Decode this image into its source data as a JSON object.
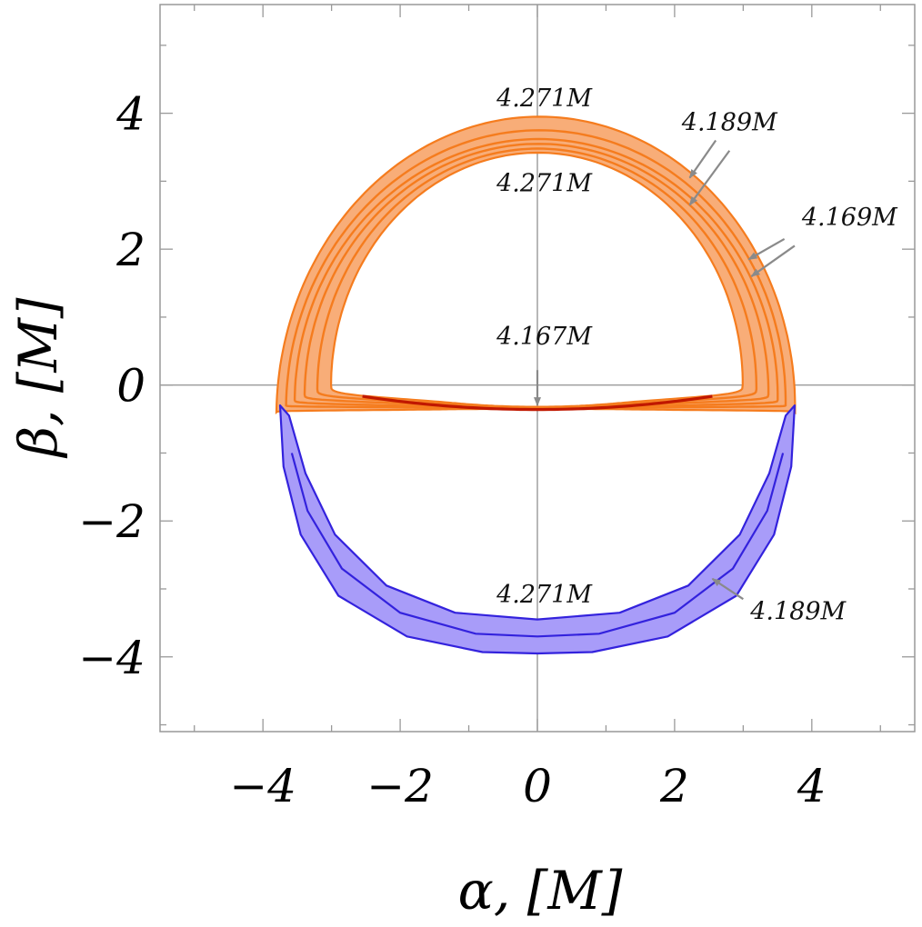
{
  "chart_data": {
    "type": "area",
    "title": "",
    "xlabel": "α, [M]",
    "ylabel": "β, [M]",
    "xlim": [
      -5.5,
      5.5
    ],
    "ylim": [
      -5.1,
      5.6
    ],
    "xticks": [
      -4,
      -2,
      0,
      2,
      4
    ],
    "yticks": [
      -4,
      -2,
      0,
      2,
      4
    ],
    "x_tick_labels": [
      "−4",
      "−2",
      "0",
      "2",
      "4"
    ],
    "y_tick_labels": [
      "−4",
      "−2",
      "0",
      "2",
      "4"
    ],
    "grid": false,
    "crosshair_at": [
      0,
      0
    ],
    "colors": {
      "orange_fill": "#f8ad78",
      "orange_stroke": "#f57c1e",
      "blue_fill": "#a89cf9",
      "blue_stroke": "#3322dd",
      "inner_arc": "#c01800",
      "annotation": "#8a8a8a"
    },
    "series": [
      {
        "band": "upper",
        "outer": {
          "a": 3.78,
          "b": 3.95,
          "yb": -0.35,
          "ybo": -0.4,
          "lower_k": 6.0,
          "shift": 0.05
        },
        "inner": {
          "a": 3.0,
          "b": 3.42,
          "yb": -0.32,
          "ybo": 0.0,
          "lower_k": 5.0,
          "shift": 0.02
        },
        "contours": [
          {
            "a": 3.64,
            "b": 3.75,
            "yb": -0.34,
            "ybo": -0.3,
            "lower_k": 5.8,
            "shift": 0.05
          },
          {
            "a": 3.52,
            "b": 3.62,
            "yb": -0.34,
            "ybo": -0.22,
            "lower_k": 5.6,
            "shift": 0.04
          },
          {
            "a": 3.38,
            "b": 3.55,
            "yb": -0.33,
            "ybo": -0.14,
            "lower_k": 5.4,
            "shift": 0.03
          },
          {
            "a": 3.2,
            "b": 3.48,
            "yb": -0.33,
            "ybo": -0.06,
            "lower_k": 5.2,
            "shift": 0.02
          }
        ],
        "inner_arc": {
          "x_start": -2.55,
          "x_end": 2.55,
          "y_center": -0.36,
          "curv": 0.03
        }
      },
      {
        "band": "lower",
        "outer": [
          [
            -3.75,
            -0.3
          ],
          [
            -3.7,
            -1.2
          ],
          [
            -3.45,
            -2.2
          ],
          [
            -2.9,
            -3.1
          ],
          [
            -1.9,
            -3.7
          ],
          [
            -0.8,
            -3.93
          ],
          [
            0.0,
            -3.95
          ],
          [
            0.8,
            -3.93
          ],
          [
            1.9,
            -3.7
          ],
          [
            2.9,
            -3.1
          ],
          [
            3.45,
            -2.2
          ],
          [
            3.7,
            -1.2
          ],
          [
            3.75,
            -0.3
          ],
          [
            3.62,
            -0.45
          ],
          [
            3.38,
            -1.3
          ],
          [
            2.95,
            -2.2
          ],
          [
            2.2,
            -2.95
          ],
          [
            1.2,
            -3.35
          ],
          [
            0.0,
            -3.45
          ],
          [
            -1.2,
            -3.35
          ],
          [
            -2.2,
            -2.95
          ],
          [
            -2.95,
            -2.2
          ],
          [
            -3.38,
            -1.3
          ],
          [
            -3.62,
            -0.45
          ]
        ],
        "contour": [
          [
            -3.58,
            -1.0
          ],
          [
            -3.35,
            -1.85
          ],
          [
            -2.85,
            -2.7
          ],
          [
            -2.0,
            -3.35
          ],
          [
            -0.9,
            -3.66
          ],
          [
            0.0,
            -3.7
          ],
          [
            0.9,
            -3.66
          ],
          [
            2.0,
            -3.35
          ],
          [
            2.85,
            -2.7
          ],
          [
            3.35,
            -1.85
          ],
          [
            3.58,
            -1.0
          ]
        ]
      }
    ],
    "annotations": [
      {
        "text": "4.271M",
        "x": 0.1,
        "y": 4.1,
        "arrows": []
      },
      {
        "text": "4.271M",
        "x": 0.1,
        "y": 2.85,
        "arrows": []
      },
      {
        "text": "4.189M",
        "x": 2.8,
        "y": 3.75,
        "arrows": [
          {
            "from": [
              2.6,
              3.6
            ],
            "to": [
              2.22,
              3.05
            ]
          },
          {
            "from": [
              2.8,
              3.45
            ],
            "to": [
              2.22,
              2.65
            ]
          }
        ]
      },
      {
        "text": "4.169M",
        "x": 4.55,
        "y": 2.35,
        "arrows": [
          {
            "from": [
              3.6,
              2.15
            ],
            "to": [
              3.08,
              1.85
            ]
          },
          {
            "from": [
              3.75,
              2.05
            ],
            "to": [
              3.12,
              1.6
            ]
          }
        ]
      },
      {
        "text": "4.167M",
        "x": 0.1,
        "y": 0.6,
        "arrows": [
          {
            "from": [
              0.0,
              0.22
            ],
            "to": [
              0.0,
              -0.3
            ]
          }
        ]
      },
      {
        "text": "4.271M",
        "x": 0.1,
        "y": -3.2,
        "arrows": []
      },
      {
        "text": "4.189M",
        "x": 3.8,
        "y": -3.45,
        "arrows": [
          {
            "from": [
              3.0,
              -3.15
            ],
            "to": [
              2.55,
              -2.85
            ]
          }
        ]
      }
    ]
  }
}
